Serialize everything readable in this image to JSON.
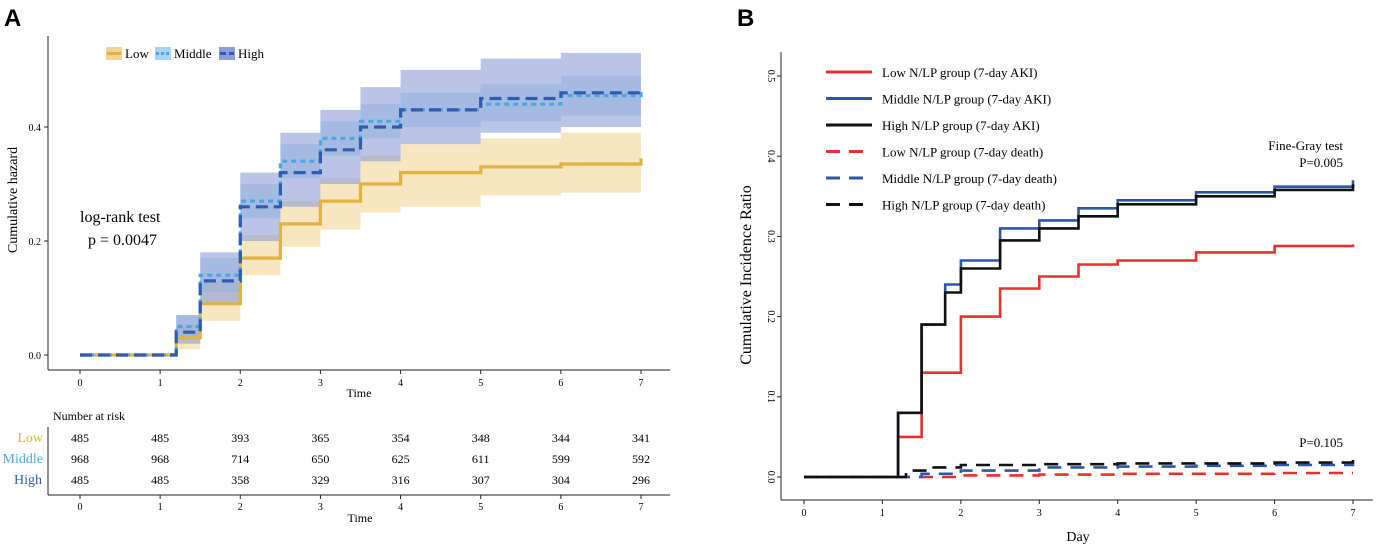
{
  "chart_data": [
    {
      "panel": "A",
      "type": "line",
      "subtype": "cumulative hazard (step) with confidence bands",
      "xlabel": "Time",
      "ylabel": "Cumulative hazard",
      "xlim": [
        0,
        7
      ],
      "ylim": [
        0,
        0.55
      ],
      "x_ticks": [
        0,
        1,
        2,
        3,
        4,
        5,
        6,
        7
      ],
      "y_ticks": [
        0.0,
        0.2,
        0.4
      ],
      "y_tick_labels": [
        "0.0",
        "0.2",
        "0.4"
      ],
      "legend": {
        "position": "top-left",
        "entries": [
          "Low",
          "Middle",
          "High"
        ]
      },
      "annotation": {
        "line1": "log-rank test",
        "line2": "p = 0.0047"
      },
      "series": [
        {
          "name": "Low",
          "color": "#E0B340",
          "band_color": "#F2D596",
          "dash": "solid",
          "x": [
            0,
            1,
            1.2,
            1.5,
            2,
            2.5,
            3,
            3.5,
            4,
            5,
            6,
            7
          ],
          "y": [
            0,
            0,
            0.03,
            0.09,
            0.17,
            0.23,
            0.27,
            0.3,
            0.32,
            0.33,
            0.335,
            0.345
          ],
          "lower": [
            0,
            0,
            0.01,
            0.06,
            0.14,
            0.19,
            0.22,
            0.25,
            0.26,
            0.28,
            0.285,
            0.29
          ],
          "upper": [
            0,
            0,
            0.05,
            0.13,
            0.21,
            0.27,
            0.31,
            0.35,
            0.37,
            0.38,
            0.39,
            0.4
          ]
        },
        {
          "name": "Middle",
          "color": "#4AA8DE",
          "band_color": "#A9D4EF",
          "dash": "dotted",
          "x": [
            0,
            1,
            1.2,
            1.5,
            2,
            2.5,
            3,
            3.5,
            4,
            5,
            6,
            7
          ],
          "y": [
            0,
            0,
            0.05,
            0.14,
            0.27,
            0.34,
            0.38,
            0.41,
            0.43,
            0.44,
            0.455,
            0.465
          ],
          "lower": [
            0,
            0,
            0.03,
            0.11,
            0.24,
            0.31,
            0.35,
            0.38,
            0.4,
            0.41,
            0.42,
            0.43
          ],
          "upper": [
            0,
            0,
            0.07,
            0.17,
            0.3,
            0.37,
            0.41,
            0.44,
            0.46,
            0.475,
            0.49,
            0.5
          ]
        },
        {
          "name": "High",
          "color": "#2F5BB0",
          "band_color": "#8C9CD6",
          "dash": "dashed",
          "x": [
            0,
            1,
            1.2,
            1.5,
            2,
            2.5,
            3,
            3.5,
            4,
            5,
            6,
            7
          ],
          "y": [
            0,
            0,
            0.04,
            0.13,
            0.26,
            0.32,
            0.36,
            0.4,
            0.43,
            0.45,
            0.46,
            0.465
          ],
          "lower": [
            0,
            0,
            0.02,
            0.09,
            0.2,
            0.26,
            0.3,
            0.34,
            0.37,
            0.39,
            0.4,
            0.4
          ],
          "upper": [
            0,
            0,
            0.07,
            0.18,
            0.32,
            0.39,
            0.43,
            0.47,
            0.5,
            0.52,
            0.53,
            0.535
          ]
        }
      ],
      "risk_table": {
        "title": "Number at risk",
        "xlabel": "Time",
        "times": [
          0,
          1,
          2,
          3,
          4,
          5,
          6,
          7
        ],
        "rows": [
          {
            "group": "Low",
            "color": "#E0B340",
            "values": [
              485,
              485,
              393,
              365,
              354,
              348,
              344,
              341
            ]
          },
          {
            "group": "Middle",
            "color": "#4AA8DE",
            "values": [
              968,
              968,
              714,
              650,
              625,
              611,
              599,
              592
            ]
          },
          {
            "group": "High",
            "color": "#2F5BB0",
            "values": [
              485,
              485,
              358,
              329,
              316,
              307,
              304,
              296
            ]
          }
        ]
      }
    },
    {
      "panel": "B",
      "type": "line",
      "subtype": "cumulative incidence (step)",
      "xlabel": "Day",
      "ylabel": "Cumulative Incidence Ratio",
      "xlim": [
        0,
        7
      ],
      "ylim": [
        0,
        0.52
      ],
      "x_ticks": [
        0,
        1,
        2,
        3,
        4,
        5,
        6,
        7
      ],
      "y_ticks": [
        0.0,
        0.1,
        0.2,
        0.3,
        0.4,
        0.5
      ],
      "y_tick_labels": [
        "0.0",
        "0.1",
        "0.2",
        "0.3",
        "0.4",
        "0.5"
      ],
      "legend": {
        "position": "top-left",
        "entries": [
          "Low N/LP group (7-day AKI)",
          "Middle N/LP group (7-day AKI)",
          "High N/LP group (7-day AKI)",
          "Low N/LP group (7-day death)",
          "Middle N/LP group (7-day death)",
          "High N/LP group (7-day death)"
        ]
      },
      "annotations": {
        "finegray_title": "Fine-Gray test",
        "p_aki": "P=0.005",
        "p_death": "P=0.105"
      },
      "series": [
        {
          "name": "Low N/LP group (7-day AKI)",
          "color": "#E8302C",
          "dash": "solid",
          "x": [
            0,
            1,
            1.2,
            1.5,
            2,
            2.5,
            3,
            3.5,
            4,
            5,
            6,
            7
          ],
          "y": [
            0,
            0,
            0.05,
            0.13,
            0.2,
            0.235,
            0.25,
            0.265,
            0.27,
            0.28,
            0.288,
            0.29
          ]
        },
        {
          "name": "Middle N/LP group (7-day AKI)",
          "color": "#2D55A8",
          "dash": "solid",
          "x": [
            0,
            1,
            1.2,
            1.5,
            1.8,
            2,
            2.5,
            3,
            3.5,
            4,
            5,
            6,
            7
          ],
          "y": [
            0,
            0,
            0.08,
            0.19,
            0.24,
            0.27,
            0.31,
            0.32,
            0.335,
            0.345,
            0.355,
            0.362,
            0.37
          ]
        },
        {
          "name": "High N/LP group (7-day AKI)",
          "color": "#111111",
          "dash": "solid",
          "x": [
            0,
            1,
            1.2,
            1.5,
            1.8,
            2,
            2.5,
            3,
            3.5,
            4,
            5,
            6,
            7
          ],
          "y": [
            0,
            0,
            0.08,
            0.19,
            0.23,
            0.26,
            0.295,
            0.31,
            0.325,
            0.34,
            0.35,
            0.358,
            0.365
          ]
        },
        {
          "name": "Low N/LP group (7-day death)",
          "color": "#E8302C",
          "dash": "dashed",
          "x": [
            0,
            1,
            2,
            3,
            4,
            5,
            6,
            7
          ],
          "y": [
            0,
            0,
            0.002,
            0.003,
            0.004,
            0.004,
            0.005,
            0.005
          ]
        },
        {
          "name": "Middle N/LP group (7-day death)",
          "color": "#2D55A8",
          "dash": "dashed",
          "x": [
            0,
            1,
            1.5,
            2,
            3,
            4,
            5,
            6,
            7
          ],
          "y": [
            0,
            0,
            0.004,
            0.008,
            0.012,
            0.013,
            0.014,
            0.015,
            0.016
          ]
        },
        {
          "name": "High N/LP group (7-day death)",
          "color": "#111111",
          "dash": "dashed",
          "x": [
            0,
            1,
            1.3,
            1.6,
            2,
            3,
            4,
            5,
            6,
            7
          ],
          "y": [
            0,
            0,
            0.008,
            0.012,
            0.015,
            0.016,
            0.017,
            0.017,
            0.018,
            0.022
          ]
        }
      ]
    }
  ]
}
